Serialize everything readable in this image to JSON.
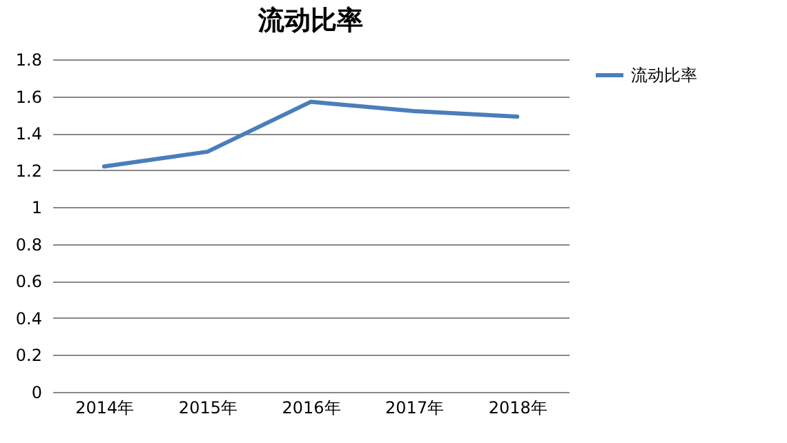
{
  "chart_data": {
    "type": "line",
    "title": "流动比率",
    "categories": [
      "2014年",
      "2015年",
      "2016年",
      "2017年",
      "2018年"
    ],
    "series": [
      {
        "name": "流动比率",
        "color": "#4a7ebb",
        "values": [
          1.22,
          1.3,
          1.57,
          1.52,
          1.49
        ]
      }
    ],
    "ylim": [
      0,
      1.8
    ],
    "yticks": [
      0,
      0.2,
      0.4,
      0.6,
      0.8,
      1,
      1.2,
      1.4,
      1.6,
      1.8
    ],
    "grid": "y",
    "legend": "right",
    "marker": "none",
    "line_style": "solid"
  }
}
